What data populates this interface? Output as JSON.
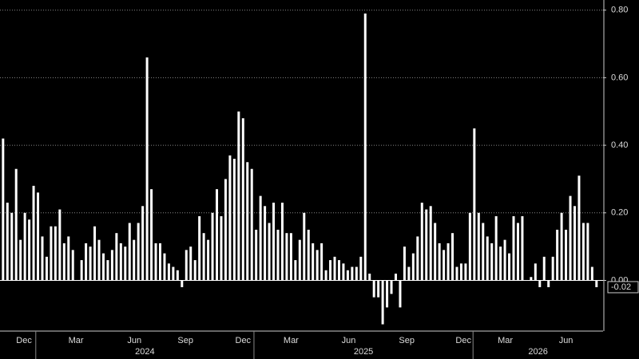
{
  "chart_data": {
    "type": "bar",
    "color": "#ffffff",
    "values": [
      0.42,
      0.23,
      0.2,
      0.33,
      0.12,
      0.2,
      0.18,
      0.28,
      0.26,
      0.13,
      0.07,
      0.16,
      0.16,
      0.21,
      0.11,
      0.13,
      0.09,
      0.0,
      0.06,
      0.11,
      0.1,
      0.16,
      0.12,
      0.08,
      0.06,
      0.09,
      0.14,
      0.11,
      0.1,
      0.17,
      0.12,
      0.17,
      0.22,
      0.66,
      0.27,
      0.11,
      0.11,
      0.08,
      0.05,
      0.04,
      0.03,
      -0.02,
      0.09,
      0.1,
      0.06,
      0.19,
      0.14,
      0.12,
      0.2,
      0.27,
      0.19,
      0.3,
      0.37,
      0.36,
      0.5,
      0.48,
      0.35,
      0.33,
      0.15,
      0.25,
      0.22,
      0.17,
      0.23,
      0.15,
      0.23,
      0.14,
      0.14,
      0.06,
      0.12,
      0.2,
      0.15,
      0.11,
      0.09,
      0.11,
      0.03,
      0.06,
      0.07,
      0.06,
      0.05,
      0.03,
      0.04,
      0.04,
      0.07,
      0.79,
      0.02,
      -0.05,
      -0.05,
      -0.13,
      -0.08,
      -0.04,
      0.02,
      -0.08,
      0.1,
      0.04,
      0.08,
      0.13,
      0.23,
      0.21,
      0.22,
      0.17,
      0.11,
      0.09,
      0.11,
      0.14,
      0.04,
      0.05,
      0.05,
      0.2,
      0.45,
      0.2,
      0.17,
      0.13,
      0.11,
      0.19,
      0.1,
      0.12,
      0.08,
      0.19,
      0.17,
      0.19,
      0.0,
      0.01,
      0.05,
      -0.02,
      0.07,
      -0.02,
      0.07,
      0.15,
      0.2,
      0.15,
      0.25,
      0.22,
      0.31,
      0.17,
      0.17,
      0.04,
      -0.02
    ],
    "xlim": [
      -0.7,
      137.5
    ],
    "xticks": [
      {
        "value": 4.8,
        "label": "Dec"
      },
      {
        "value": 16.7,
        "label": "Mar"
      },
      {
        "value": 30.1,
        "label": "Jun"
      },
      {
        "value": 41.8,
        "label": "Sep"
      },
      {
        "value": 55.0,
        "label": "Dec"
      },
      {
        "value": 66.0,
        "label": "Mar"
      },
      {
        "value": 79.2,
        "label": "Jun"
      },
      {
        "value": 92.5,
        "label": "Sep"
      },
      {
        "value": 105.5,
        "label": "Dec"
      },
      {
        "value": 115.1,
        "label": "Mar"
      },
      {
        "value": 129.0,
        "label": "Jun"
      }
    ],
    "year_ticks": [
      {
        "value": 7.5,
        "label": "2024"
      },
      {
        "value": 57.5,
        "label": "2025"
      },
      {
        "value": 107.7,
        "label": "2026"
      }
    ],
    "ylim": [
      -0.15,
      0.83
    ],
    "yticks": [
      {
        "value": 0,
        "label": "0.00"
      },
      {
        "value": 0.2,
        "label": "0.20"
      },
      {
        "value": 0.4,
        "label": "0.40"
      },
      {
        "value": 0.6,
        "label": "0.60"
      },
      {
        "value": 0.8,
        "label": "0.80"
      }
    ],
    "grid": true
  }
}
